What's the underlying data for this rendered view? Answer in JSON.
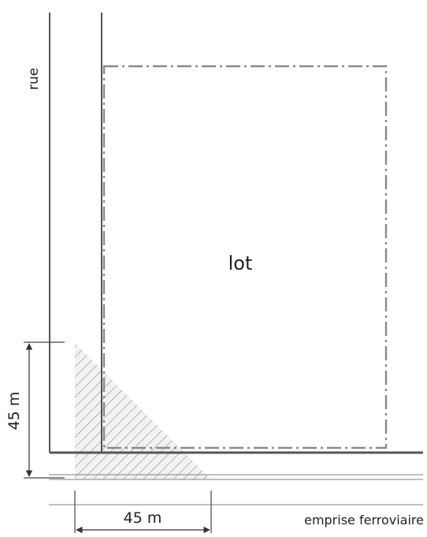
{
  "labels": {
    "street": "rue",
    "lot": "lot",
    "vertical_dimension": "45 m",
    "horizontal_dimension": "45 m",
    "railway": "emprise ferroviaire"
  },
  "colors": {
    "line": "#555555",
    "hatch": "#9a9a9a",
    "hatch_fill": "#f2f2f2",
    "lot_outline": "#8a8a8a"
  }
}
